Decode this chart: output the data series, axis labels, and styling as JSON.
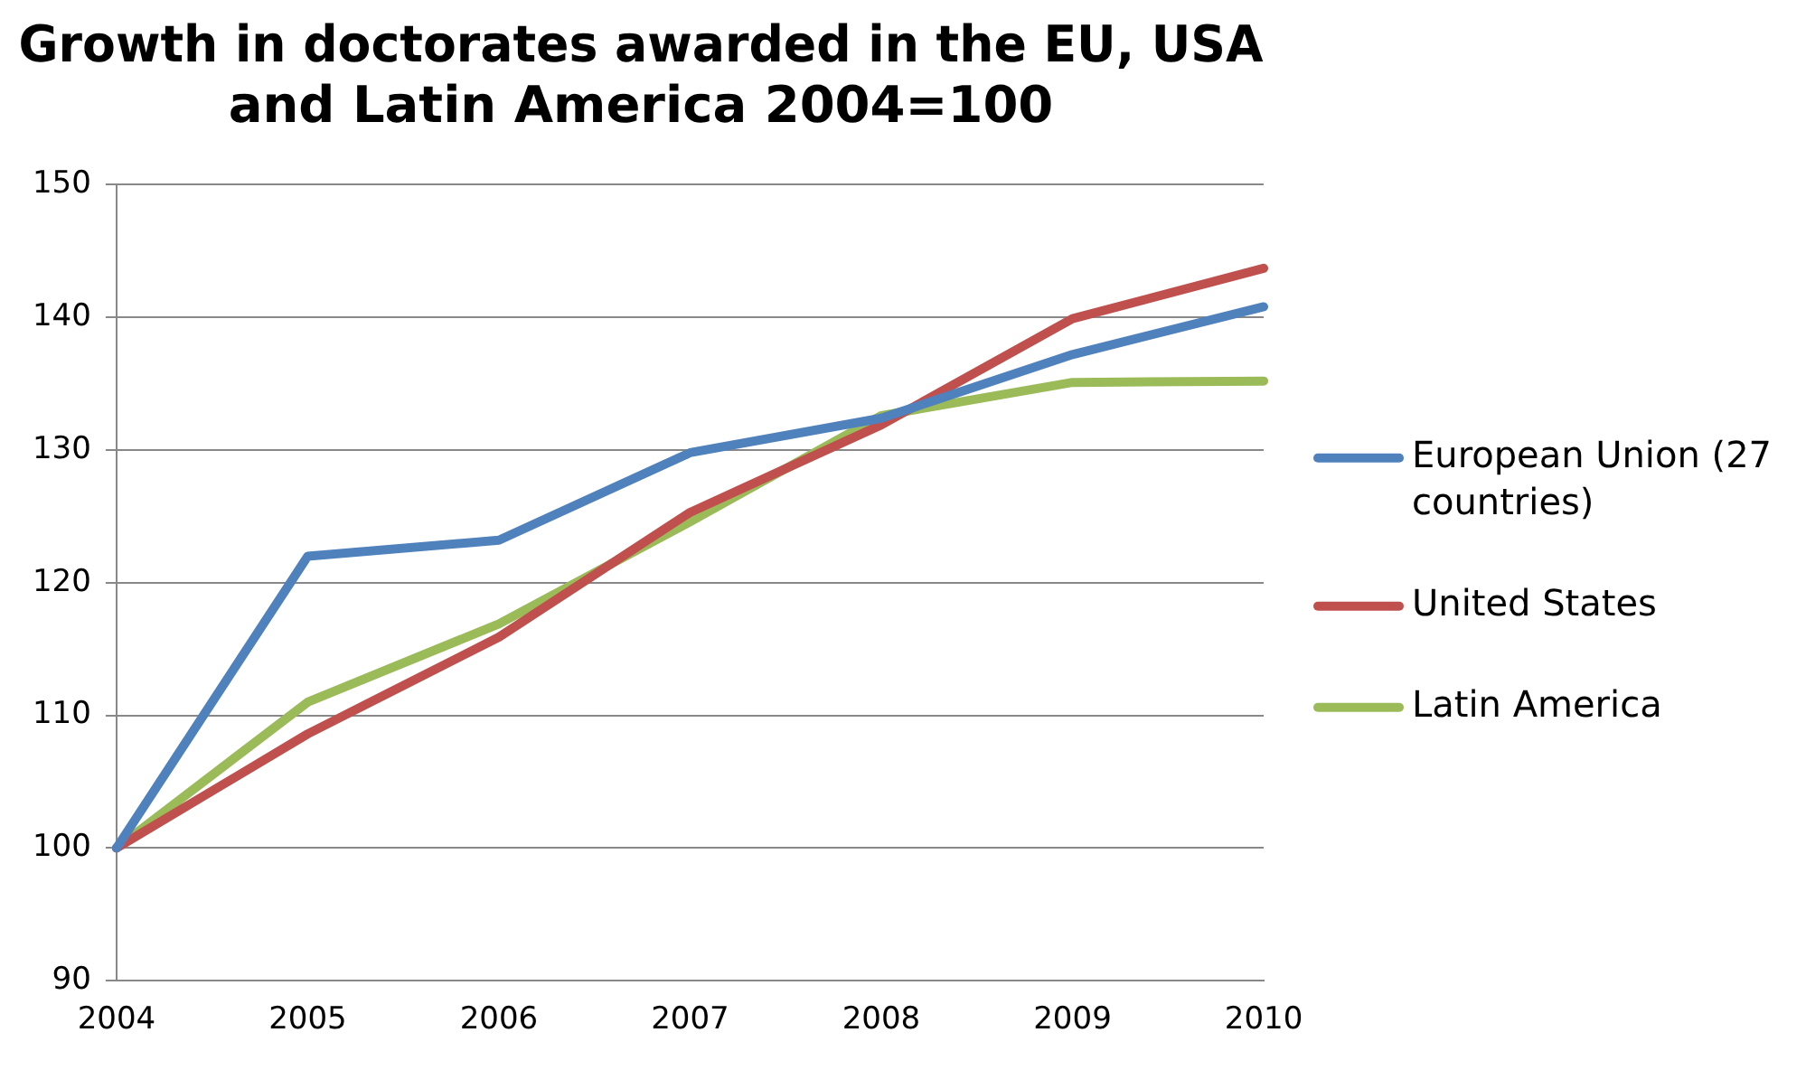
{
  "chart_data": {
    "type": "line",
    "title": "Growth in doctorates awarded in the EU, USA and Latin America 2004=100",
    "categories": [
      "2004",
      "2005",
      "2006",
      "2007",
      "2008",
      "2009",
      "2010"
    ],
    "series": [
      {
        "name": "European Union (27 countries)",
        "color": "#4f81bd",
        "values": [
          100,
          122,
          123.2,
          129.8,
          132.4,
          137.2,
          140.8
        ]
      },
      {
        "name": "United States",
        "color": "#c0504d",
        "values": [
          100,
          108.6,
          115.9,
          125.3,
          131.9,
          139.9,
          143.7
        ]
      },
      {
        "name": "Latin America",
        "color": "#9bbb59",
        "values": [
          100,
          111,
          116.9,
          124.6,
          132.6,
          135.1,
          135.2
        ]
      }
    ],
    "ylim": [
      90,
      150
    ],
    "yticks": [
      90,
      100,
      110,
      120,
      130,
      140,
      150
    ],
    "grid": "y",
    "legend": "right",
    "marker": "none",
    "line_style": "solid"
  }
}
